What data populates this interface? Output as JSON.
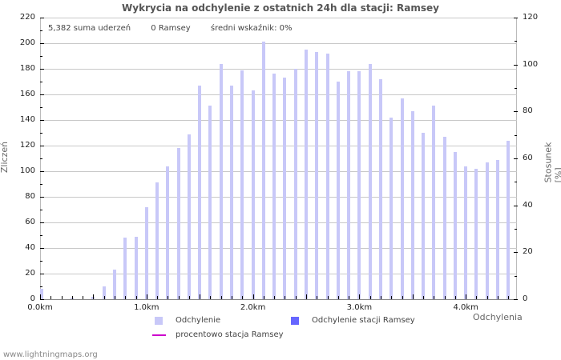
{
  "header": {
    "title": "Wykrycia na odchylenie z ostatnich 24h dla stacji: Ramsey"
  },
  "summary": {
    "total": "5,382 suma uderzeń",
    "station": "0 Ramsey",
    "ratio": "średni wskaźnik: 0%"
  },
  "axes": {
    "ylabel_left": "Zliczeń",
    "ylabel_right": "Stosunek [%]",
    "xlabel": "Odchylenia",
    "left_ticks": [
      "0",
      "20",
      "40",
      "60",
      "80",
      "100",
      "120",
      "140",
      "160",
      "180",
      "200",
      "220"
    ],
    "right_ticks": [
      "0",
      "20",
      "40",
      "60",
      "80",
      "100",
      "120"
    ],
    "x_ticks": [
      "0.0km",
      "1.0km",
      "2.0km",
      "3.0km",
      "4.0km"
    ]
  },
  "legend": {
    "series1": "Odchylenie",
    "series2": "Odchylenie stacji Ramsey",
    "series3": "procentowo stacja Ramsey"
  },
  "colors": {
    "bar": "#c8c8f8",
    "station_bar": "#6666ff",
    "line": "#cc00cc"
  },
  "footer": {
    "site": "www.lightningmaps.org"
  },
  "chart_data": {
    "type": "bar",
    "title": "Wykrycia na odchylenie z ostatnich 24h dla stacji: Ramsey",
    "xlabel": "Odchylenia",
    "ylabel": "Zliczeń",
    "ylabel_right": "Stosunek [%]",
    "ylim": [
      0,
      220
    ],
    "ylim_right": [
      0,
      120
    ],
    "categories": [
      "0.0",
      "0.1",
      "0.2",
      "0.3",
      "0.4",
      "0.5",
      "0.6",
      "0.7",
      "0.8",
      "0.9",
      "1.0",
      "1.1",
      "1.2",
      "1.3",
      "1.4",
      "1.5",
      "1.6",
      "1.7",
      "1.8",
      "1.9",
      "2.0",
      "2.1",
      "2.2",
      "2.3",
      "2.4",
      "2.5",
      "2.6",
      "2.7",
      "2.8",
      "2.9",
      "3.0",
      "3.1",
      "3.2",
      "3.3",
      "3.4",
      "3.5",
      "3.6",
      "3.7",
      "3.8",
      "3.9",
      "4.0",
      "4.1",
      "4.2",
      "4.3",
      "4.4"
    ],
    "series": [
      {
        "name": "Odchylenie",
        "values": [
          8,
          0,
          0,
          1,
          0,
          2,
          10,
          23,
          48,
          49,
          72,
          91,
          104,
          118,
          129,
          167,
          151,
          184,
          167,
          179,
          163,
          201,
          176,
          173,
          180,
          195,
          193,
          192,
          170,
          178,
          178,
          184,
          172,
          142,
          157,
          147,
          130,
          151,
          127,
          115,
          104,
          102,
          107,
          109,
          124
        ]
      },
      {
        "name": "Odchylenie stacji Ramsey",
        "values": [
          0,
          0,
          0,
          0,
          0,
          0,
          0,
          0,
          0,
          0,
          0,
          0,
          0,
          0,
          0,
          0,
          0,
          0,
          0,
          0,
          0,
          0,
          0,
          0,
          0,
          0,
          0,
          0,
          0,
          0,
          0,
          0,
          0,
          0,
          0,
          0,
          0,
          0,
          0,
          0,
          0,
          0,
          0,
          0,
          0
        ]
      },
      {
        "name": "procentowo stacja Ramsey",
        "values": [
          0,
          0,
          0,
          0,
          0,
          0,
          0,
          0,
          0,
          0,
          0,
          0,
          0,
          0,
          0,
          0,
          0,
          0,
          0,
          0,
          0,
          0,
          0,
          0,
          0,
          0,
          0,
          0,
          0,
          0,
          0,
          0,
          0,
          0,
          0,
          0,
          0,
          0,
          0,
          0,
          0,
          0,
          0,
          0,
          0
        ]
      }
    ],
    "summary": {
      "total_strikes": 5382,
      "station_strikes": 0,
      "average_ratio_pct": 0
    },
    "grid": true,
    "legend_position": "bottom"
  }
}
